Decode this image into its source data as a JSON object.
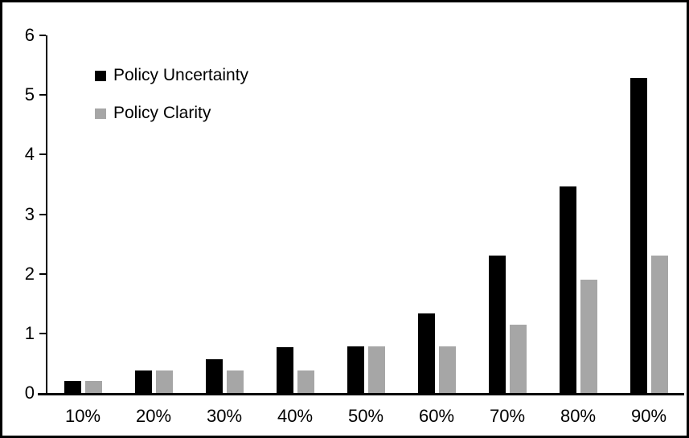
{
  "chart_data": {
    "type": "bar",
    "title": "",
    "xlabel": "",
    "ylabel": "",
    "categories": [
      "10%",
      "20%",
      "30%",
      "40%",
      "50%",
      "60%",
      "70%",
      "80%",
      "90%"
    ],
    "series": [
      {
        "name": "Policy Uncertainty",
        "color": "#000000",
        "values": [
          0.2,
          0.38,
          0.57,
          0.77,
          0.78,
          1.33,
          2.3,
          3.47,
          5.28
        ]
      },
      {
        "name": "Policy Clarity",
        "color": "#a6a6a6",
        "values": [
          0.2,
          0.38,
          0.38,
          0.38,
          0.78,
          0.78,
          1.15,
          1.9,
          2.3
        ]
      }
    ],
    "ylim": [
      0,
      6
    ],
    "yticks": [
      0,
      1,
      2,
      3,
      4,
      5,
      6
    ],
    "grid": false,
    "legend_position": "top-left",
    "frame": {
      "border_color": "#000000",
      "background": "#ffffff"
    }
  }
}
